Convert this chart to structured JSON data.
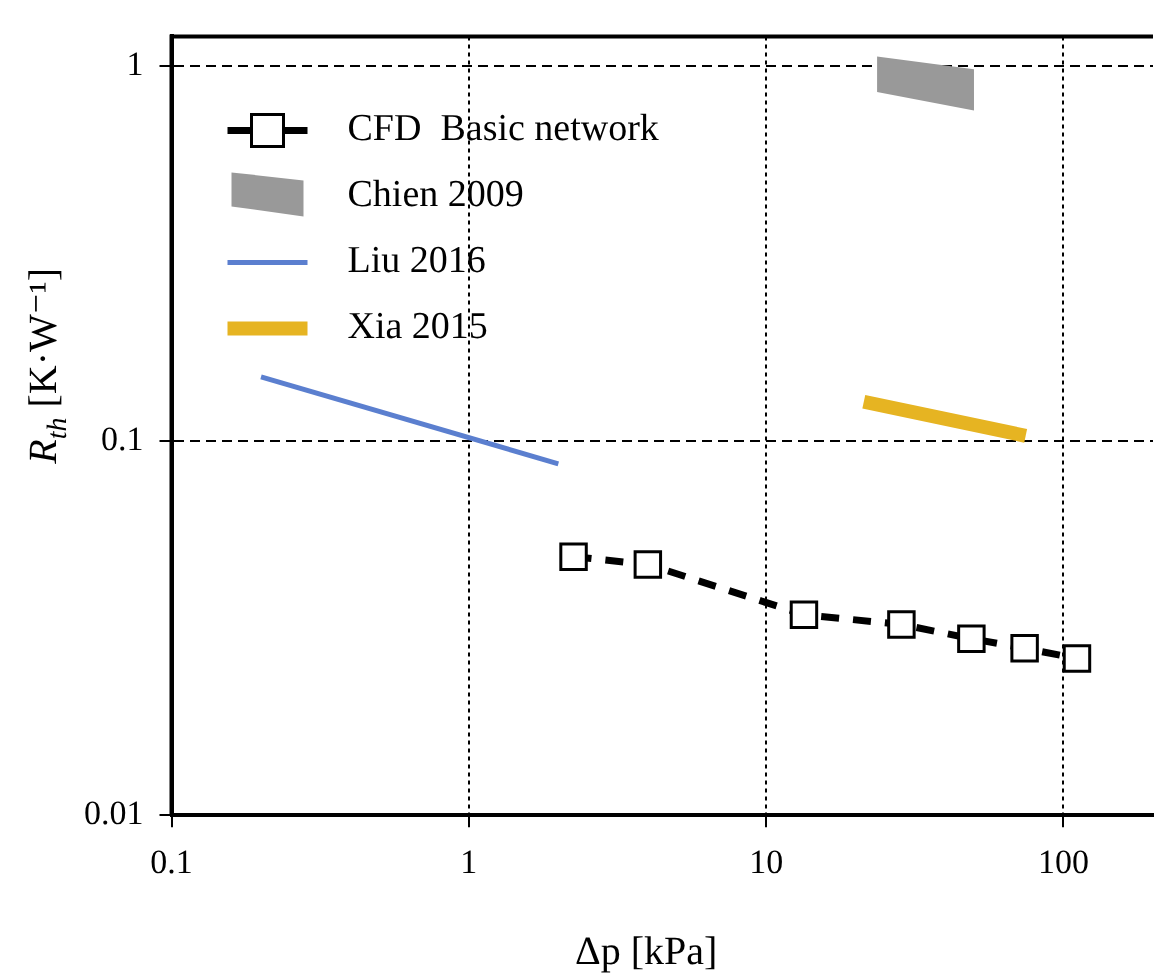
{
  "chart_data": {
    "type": "line",
    "xlabel": "Δp [kPa]",
    "ylabel": "R$_{th}$ [K·W⁻¹]",
    "log": "xy",
    "xlim": [
      0.1,
      200
    ],
    "ylim": [
      0.01,
      1.2
    ],
    "xticks": [
      0.1,
      1,
      10,
      100
    ],
    "yticks": [
      0.01,
      0.1,
      1
    ],
    "grid": true,
    "legend": "top left",
    "series": [
      {
        "name": "CFD  Basic network",
        "type": "line",
        "color": "#000000",
        "marker": "square",
        "line_style": "dashed",
        "x": [
          2.25,
          4.0,
          13.4,
          28.5,
          49,
          74,
          111
        ],
        "values": [
          0.049,
          0.0467,
          0.0343,
          0.0323,
          0.0296,
          0.0279,
          0.0262
        ]
      },
      {
        "name": "Chien 2009",
        "type": "line",
        "color": "#999999",
        "marker": "none",
        "line_style": "solid",
        "x": [
          23.6,
          50
        ],
        "values": [
          null,
          null
        ],
        "lower": [
          0.853,
          0.761
        ],
        "upper": [
          1.06,
          0.98
        ]
      },
      {
        "name": "Liu 2016",
        "type": "line",
        "color": "#5b7fcf",
        "marker": "none",
        "line_style": "solid",
        "x": [
          0.2,
          2.0
        ],
        "values": [
          0.148,
          0.0867
        ]
      },
      {
        "name": "Xia 2015",
        "type": "line",
        "color": "#e6b422",
        "marker": "none",
        "line_style": "solid",
        "x": [
          21.3,
          74.6
        ],
        "values": [
          0.127,
          0.103
        ]
      }
    ]
  }
}
